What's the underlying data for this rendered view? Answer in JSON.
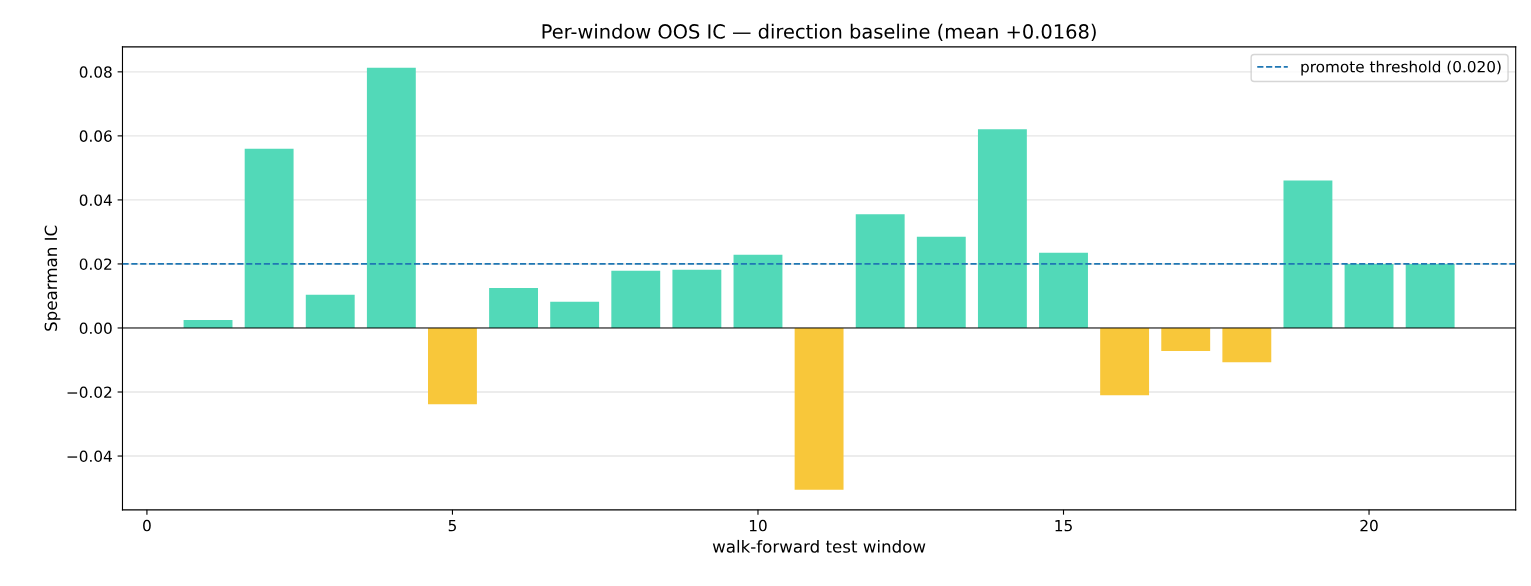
{
  "chart_data": {
    "type": "bar",
    "title": "Per-window OOS IC — direction baseline (mean +0.0168)",
    "xlabel": "walk-forward test window",
    "ylabel": "Spearman IC",
    "x": [
      1,
      2,
      3,
      4,
      5,
      6,
      7,
      8,
      9,
      10,
      11,
      12,
      13,
      14,
      15,
      16,
      17,
      18,
      19,
      20,
      21
    ],
    "values": [
      0.0025,
      0.056,
      0.0104,
      0.0813,
      -0.0238,
      0.0125,
      0.0082,
      0.0179,
      0.0182,
      0.0229,
      -0.0505,
      0.0355,
      0.0285,
      0.0621,
      0.0235,
      -0.021,
      -0.0072,
      -0.0107,
      0.0461,
      0.02,
      0.02
    ],
    "colors": [
      "#52d9b8",
      "#52d9b8",
      "#52d9b8",
      "#52d9b8",
      "#f8c73a",
      "#52d9b8",
      "#52d9b8",
      "#52d9b8",
      "#52d9b8",
      "#52d9b8",
      "#f8c73a",
      "#52d9b8",
      "#52d9b8",
      "#52d9b8",
      "#52d9b8",
      "#f8c73a",
      "#f8c73a",
      "#f8c73a",
      "#52d9b8",
      "#52d9b8",
      "#52d9b8"
    ],
    "xlim": [
      -0.4,
      22.4
    ],
    "xticks": [
      0,
      5,
      10,
      15,
      20
    ],
    "ylim": [
      -0.0568,
      0.0878
    ],
    "yticks": [
      {
        "value": -0.04,
        "label": "−0.04"
      },
      {
        "value": -0.02,
        "label": "−0.02"
      },
      {
        "value": 0,
        "label": "0.00"
      },
      {
        "value": 0.02,
        "label": "0.02"
      },
      {
        "value": 0.04,
        "label": "0.04"
      },
      {
        "value": 0.06,
        "label": "0.06"
      },
      {
        "value": 0.08,
        "label": "0.08"
      }
    ],
    "ref_lines": [
      {
        "axis": "y",
        "value": 0,
        "color": "#000000",
        "line_style": "solid"
      },
      {
        "axis": "y",
        "value": 0.02,
        "label": "promote threshold (0.020)",
        "color": "#1f77b4",
        "line_style": "dashed"
      }
    ],
    "grid": "y",
    "legend": "top right"
  }
}
